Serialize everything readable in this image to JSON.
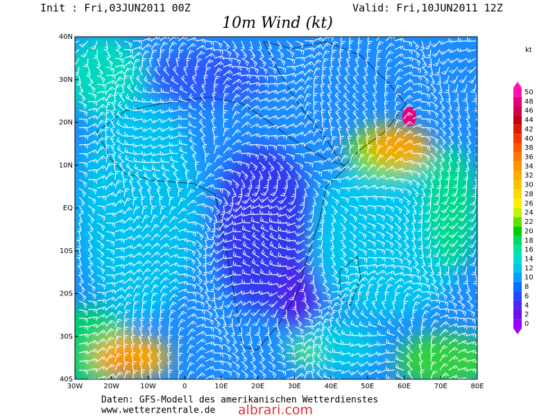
{
  "header": {
    "init": "Init : Fri,03JUN2011 00Z",
    "valid": "Valid: Fri,10JUN2011 12Z",
    "title": "10m Wind (kt)"
  },
  "map": {
    "lon_labels": [
      "30W",
      "20W",
      "10W",
      "0",
      "10E",
      "20E",
      "30E",
      "40E",
      "50E",
      "60E",
      "70E",
      "80E"
    ],
    "lat_labels": [
      "40N",
      "30N",
      "20N",
      "10N",
      "EQ",
      "10S",
      "20S",
      "30S",
      "40S"
    ]
  },
  "colorbar": {
    "unit": "kt",
    "levels": [
      50,
      48,
      46,
      44,
      42,
      40,
      38,
      36,
      34,
      32,
      30,
      28,
      26,
      24,
      22,
      20,
      18,
      16,
      14,
      12,
      10,
      8,
      6,
      4,
      2,
      0
    ],
    "colors": [
      "#ff10b0",
      "#e8007a",
      "#d00050",
      "#c00010",
      "#e01800",
      "#f03800",
      "#ff5800",
      "#ff7800",
      "#ff9400",
      "#ffac00",
      "#ffc400",
      "#ffdc00",
      "#fff000",
      "#c8f000",
      "#60e000",
      "#00d000",
      "#00dc60",
      "#00e4a0",
      "#00dcd0",
      "#00c4f0",
      "#00a0ff",
      "#0070ff",
      "#2846ff",
      "#4a28f0",
      "#6a10e8",
      "#9a00ff"
    ]
  },
  "footer": {
    "source": "Daten: GFS-Modell des amerikanischen Wetterdienstes",
    "site": "www.wetterzentrale.de",
    "watermark": "albrari.com"
  }
}
